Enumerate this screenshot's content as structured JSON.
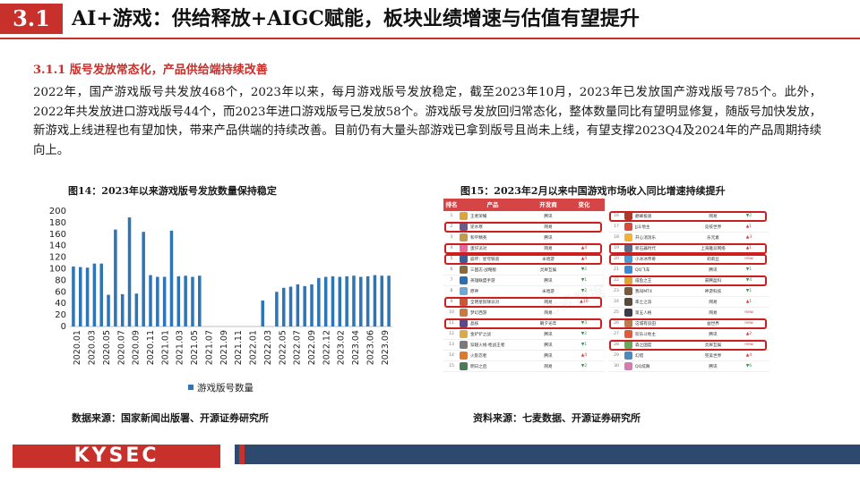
{
  "header": {
    "section_number": "3.1",
    "title": "AI+游戏：供给释放+AIGC赋能，板块业绩增速与估值有望提升"
  },
  "section": {
    "heading": "3.1.1 版号发放常态化，产品供给端持续改善",
    "paragraph": "2022年，国产游戏版号共发放468个，2023年以来，每月游戏版号发放稳定，截至2023年10月，2023年已发放国产游戏版号785个。此外，2022年共发放进口游戏版号44个，而2023年进口游戏版号已发放58个。游戏版号发放回归常态化，整体数量同比有望明显修复，随版号加快发放，新游戏上线进程也有望加快，带来产品供端的持续改善。目前仍有大量头部游戏已拿到版号且尚未上线，有望支撑2023Q4及2024年的产品周期持续向上。"
  },
  "figure14": {
    "title": "图14：2023年以来游戏版号发放数量保持稳定",
    "source": "数据来源：国家新闻出版署、开源证券研究所",
    "chart_data": {
      "type": "bar",
      "legend": "游戏版号数量",
      "legend_position": "bottom",
      "color": "#2e75b6",
      "ylim": [
        0,
        200
      ],
      "yticks": [
        0,
        20,
        40,
        60,
        80,
        100,
        120,
        140,
        160,
        180,
        200
      ],
      "xtick_labels": [
        "2020.01",
        "2020.03",
        "2020.05",
        "2020.07",
        "2020.09",
        "2020.11",
        "2021.01",
        "2021.03",
        "2021.05",
        "2021.07",
        "2021.09",
        "2021.11",
        "2022.01",
        "2022.03",
        "2022.05",
        "2022.07",
        "2022.09",
        "2022.12",
        "2023.02",
        "2023.04",
        "2023.06",
        "2023.09"
      ],
      "values": [
        104,
        103,
        102,
        109,
        109,
        55,
        168,
        56,
        189,
        57,
        164,
        89,
        86,
        86,
        166,
        87,
        88,
        86,
        88,
        0,
        0,
        0,
        0,
        0,
        0,
        0,
        0,
        45,
        0,
        60,
        67,
        69,
        73,
        70,
        73,
        84,
        86,
        87,
        86,
        87,
        88,
        86,
        87,
        89,
        88,
        88
      ]
    }
  },
  "figure15": {
    "title": "图15：2023年2月以来中国游戏市场收入同比增速持续提升",
    "source": "资料来源：七麦数据、开源证券研究所",
    "headers": [
      "排名",
      "产品",
      "开发商",
      "变化"
    ],
    "watermark": "七麦数据",
    "left_rows": [
      {
        "rank": "1",
        "name": "王者荣耀",
        "dev": "腾讯",
        "change": "",
        "dir": "",
        "hl": false,
        "color": "#e0a23a"
      },
      {
        "rank": "2",
        "name": "逆水寒",
        "dev": "网易",
        "change": "",
        "dir": "",
        "hl": true,
        "color": "#6b5a8c"
      },
      {
        "rank": "3",
        "name": "和平精英",
        "dev": "腾讯",
        "change": "",
        "dir": "",
        "hl": false,
        "color": "#c39a4c"
      },
      {
        "rank": "4",
        "name": "蛋仔派对",
        "dev": "网易",
        "change": "▲4",
        "dir": "up",
        "hl": true,
        "color": "#e86a9a"
      },
      {
        "rank": "5",
        "name": "崩坏：星穹铁道",
        "dev": "米哈游",
        "change": "▲4",
        "dir": "up",
        "hl": true,
        "color": "#3b5b9a"
      },
      {
        "rank": "6",
        "name": "三国志·战略版",
        "dev": "灵犀互娱",
        "change": "▼2",
        "dir": "down",
        "hl": false,
        "color": "#8a6a3a"
      },
      {
        "rank": "7",
        "name": "英雄联盟手游",
        "dev": "腾讯",
        "change": "▼1",
        "dir": "down",
        "hl": false,
        "color": "#2c6fb0"
      },
      {
        "rank": "8",
        "name": "原神",
        "dev": "米哈游",
        "change": "▼2",
        "dir": "down",
        "hl": false,
        "color": "#6fa8d8"
      },
      {
        "rank": "9",
        "name": "全明星街球派对",
        "dev": "网易",
        "change": "▲10",
        "dir": "up",
        "hl": true,
        "color": "#d0543a"
      },
      {
        "rank": "10",
        "name": "梦幻西游",
        "dev": "网易",
        "change": "",
        "dir": "",
        "hl": false,
        "color": "#c97a3c"
      },
      {
        "rank": "11",
        "name": "晶核",
        "dev": "朝夕光年",
        "change": "▼3",
        "dir": "down",
        "hl": true,
        "color": "#5a4a8c"
      },
      {
        "rank": "12",
        "name": "金铲铲之战",
        "dev": "腾讯",
        "change": "▼2",
        "dir": "down",
        "hl": false,
        "color": "#d9a94a"
      },
      {
        "rank": "13",
        "name": "穿越火线-枪战王者",
        "dev": "腾讯",
        "change": "▼1",
        "dir": "down",
        "hl": false,
        "color": "#7a7a7a"
      },
      {
        "rank": "14",
        "name": "火影忍者",
        "dev": "腾讯",
        "change": "▲4",
        "dir": "up",
        "hl": false,
        "color": "#e07a2a"
      },
      {
        "rank": "15",
        "name": "明日之后",
        "dev": "网易",
        "change": "▼2",
        "dir": "down",
        "hl": false,
        "color": "#4a7a5a"
      }
    ],
    "right_rows": [
      {
        "rank": "16",
        "name": "巅峰极速",
        "dev": "网易",
        "change": "▼2",
        "dir": "down",
        "hl": true,
        "color": "#b03a2a"
      },
      {
        "rank": "17",
        "name": "JJ斗地主",
        "dev": "竞技世界",
        "change": "▲1",
        "dir": "up",
        "hl": false,
        "color": "#d84a3a"
      },
      {
        "rank": "18",
        "name": "开心消消乐",
        "dev": "乐元素",
        "change": "▲3",
        "dir": "up",
        "hl": false,
        "color": "#f0b23a"
      },
      {
        "rank": "19",
        "name": "新石器时代",
        "dev": "上海雅派网络",
        "change": "▲1",
        "dir": "up",
        "hl": true,
        "color": "#5a6a8a"
      },
      {
        "rank": "20",
        "name": "小冰冰传奇",
        "dev": "莉莉丝",
        "change": "new",
        "dir": "new",
        "hl": true,
        "color": "#4a9ad8"
      },
      {
        "rank": "21",
        "name": "QQ飞车",
        "dev": "腾讯",
        "change": "▼1",
        "dir": "down",
        "hl": false,
        "color": "#3a8ad8"
      },
      {
        "rank": "22",
        "name": "咸鱼之王",
        "dev": "豪腾盈科",
        "change": "▼4",
        "dir": "down",
        "hl": true,
        "color": "#e0a23a"
      },
      {
        "rank": "23",
        "name": "我叫MT4",
        "dev": "神游科技",
        "change": "▼1",
        "dir": "down",
        "hl": false,
        "color": "#7a5a3a"
      },
      {
        "rank": "24",
        "name": "率土之滨",
        "dev": "网易",
        "change": "▲1",
        "dir": "up",
        "hl": false,
        "color": "#5a4a3a"
      },
      {
        "rank": "25",
        "name": "第五人格",
        "dev": "网易",
        "change": "new",
        "dir": "new",
        "hl": false,
        "color": "#3a3a4a"
      },
      {
        "rank": "26",
        "name": "这城有良田",
        "dev": "益世界",
        "change": "new",
        "dir": "new",
        "hl": true,
        "color": "#c07a4a"
      },
      {
        "rank": "27",
        "name": "欢乐斗地主",
        "dev": "腾讯",
        "change": "▲2",
        "dir": "up",
        "hl": false,
        "color": "#e05a3a"
      },
      {
        "rank": "28",
        "name": "森之国度",
        "dev": "灵犀互娱",
        "change": "new",
        "dir": "new",
        "hl": true,
        "color": "#6aa85a"
      },
      {
        "rank": "29",
        "name": "幻塔",
        "dev": "完美世界",
        "change": "▲4",
        "dir": "up",
        "hl": false,
        "color": "#4a8ac0"
      },
      {
        "rank": "30",
        "name": "QQ炫舞",
        "dev": "腾讯",
        "change": "▼6",
        "dir": "down",
        "hl": false,
        "color": "#d87ab0"
      }
    ]
  },
  "footer": {
    "logo": "KYSEC",
    "brand_color": "#c8302b",
    "bar_color": "#2d4a6e"
  }
}
